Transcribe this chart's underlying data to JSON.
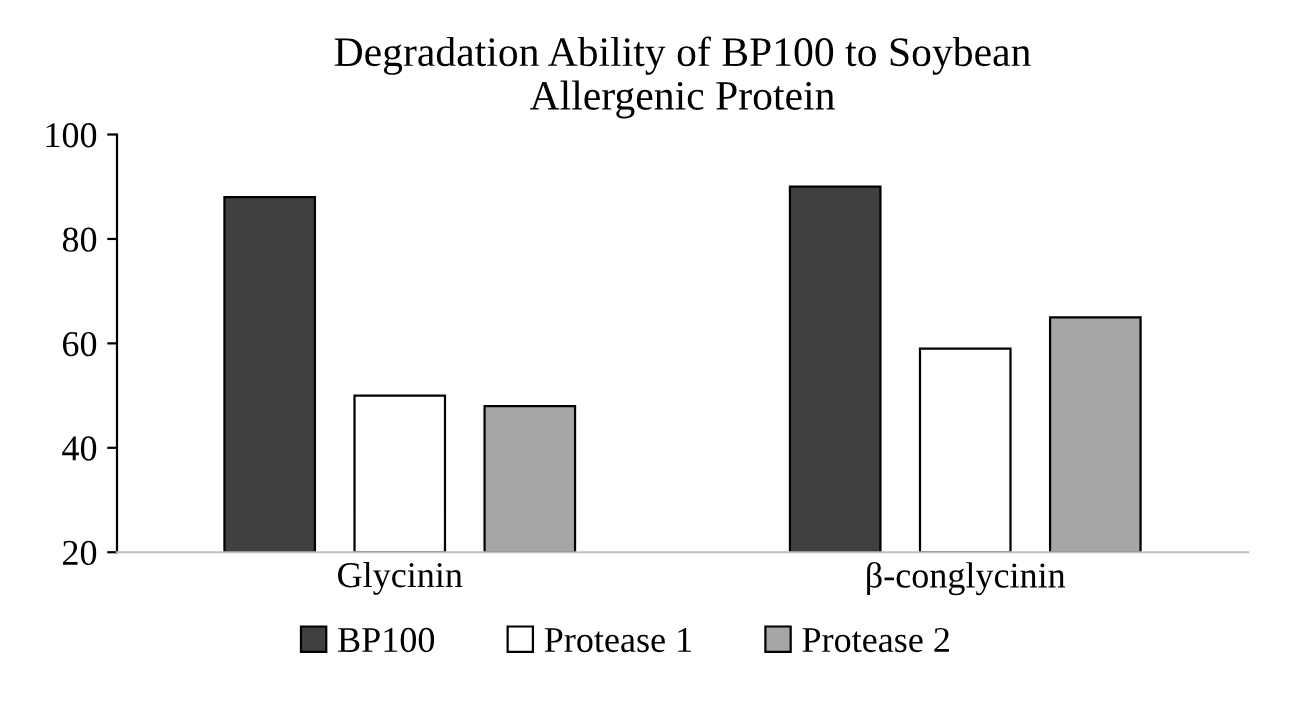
{
  "chart_data": {
    "type": "bar",
    "title": "Degradation Ability of BP100 to Soybean\nAllergenic Protein",
    "categories": [
      "Glycinin",
      "β-conglycinin"
    ],
    "series": [
      {
        "name": "BP100",
        "color": "#404040",
        "values": [
          88,
          90
        ]
      },
      {
        "name": "Protease 1",
        "color": "#ffffff",
        "values": [
          50,
          59
        ]
      },
      {
        "name": "Protease 2",
        "color": "#a6a6a6",
        "values": [
          48,
          65
        ]
      }
    ],
    "ylim": [
      20,
      100
    ],
    "yticks": [
      20,
      40,
      60,
      80,
      100
    ],
    "grid": false,
    "legend": "bottom"
  }
}
